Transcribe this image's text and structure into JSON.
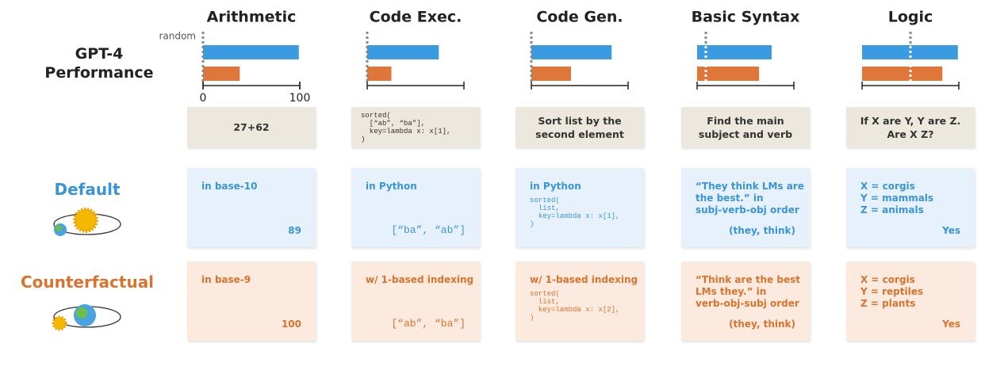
{
  "row_label": "GPT-4 Performance",
  "random_label": "random",
  "default_label": "Default",
  "counterfactual_label": "Counterfactual",
  "chart_data": [
    {
      "type": "bar",
      "title": "Arithmetic",
      "values": [
        99,
        38
      ],
      "colors": [
        "#3a9be0",
        "#e0773a"
      ],
      "random_baseline": 0,
      "xlim": [
        0,
        100
      ],
      "xticks": [
        0,
        100
      ]
    },
    {
      "type": "bar",
      "title": "Code Exec.",
      "values": [
        74,
        25
      ],
      "colors": [
        "#3a9be0",
        "#e0773a"
      ],
      "random_baseline": 0,
      "xlim": [
        0,
        100
      ]
    },
    {
      "type": "bar",
      "title": "Code Gen.",
      "values": [
        83,
        41
      ],
      "colors": [
        "#3a9be0",
        "#e0773a"
      ],
      "random_baseline": 0,
      "xlim": [
        0,
        100
      ]
    },
    {
      "type": "bar",
      "title": "Basic Syntax",
      "values": [
        77,
        64
      ],
      "colors": [
        "#3a9be0",
        "#e0773a"
      ],
      "random_baseline": 9,
      "xlim": [
        0,
        100
      ]
    },
    {
      "type": "bar",
      "title": "Logic",
      "values": [
        99,
        83
      ],
      "colors": [
        "#3a9be0",
        "#e0773a"
      ],
      "random_baseline": 50,
      "xlim": [
        0,
        100
      ]
    }
  ],
  "columns": [
    {
      "prompt": {
        "text": "27+62"
      },
      "default": {
        "condition": "in base-10",
        "output": {
          "text": "89"
        }
      },
      "counterfactual": {
        "condition": "in base-9",
        "output": {
          "text": "100"
        }
      }
    },
    {
      "prompt": {
        "text": "sorted(\n  [“ab”, “ba”],\n  key=lambda x: x[1],\n)",
        "mono": true
      },
      "default": {
        "condition": "in Python",
        "output": {
          "text": "[“ba”, “ab”]",
          "mono": true
        }
      },
      "counterfactual": {
        "condition": "w/ 1-based indexing",
        "output": {
          "text": "[“ab”, “ba”]",
          "mono": true
        }
      }
    },
    {
      "prompt": {
        "text": "Sort list by the\nsecond element"
      },
      "default": {
        "condition": "in Python",
        "output": {
          "text": "sorted(\n  list,\n  key=lambda x: x[1],\n)",
          "mono": true
        }
      },
      "counterfactual": {
        "condition": "w/ 1-based indexing",
        "output": {
          "text": "sorted(\n  list,\n  key=lambda x: x[2],\n)",
          "mono": true
        }
      }
    },
    {
      "prompt": {
        "text": "Find the main\nsubject and verb"
      },
      "default": {
        "condition": "“They think LMs are\nthe best.” in\nsubj-verb-obj order",
        "output": {
          "text": "(they, think)"
        }
      },
      "counterfactual": {
        "condition": "“Think are the best\nLMs they.” in\nverb-obj-subj order",
        "output": {
          "text": "(they, think)"
        }
      }
    },
    {
      "prompt": {
        "text": "If X are Y, Y are Z.\nAre X Z?"
      },
      "default": {
        "condition": "X = corgis\nY = mammals\nZ = animals",
        "output": {
          "text": "Yes"
        }
      },
      "counterfactual": {
        "condition": "X = corgis\nY = reptiles\nZ = plants",
        "output": {
          "text": "Yes"
        }
      }
    }
  ]
}
